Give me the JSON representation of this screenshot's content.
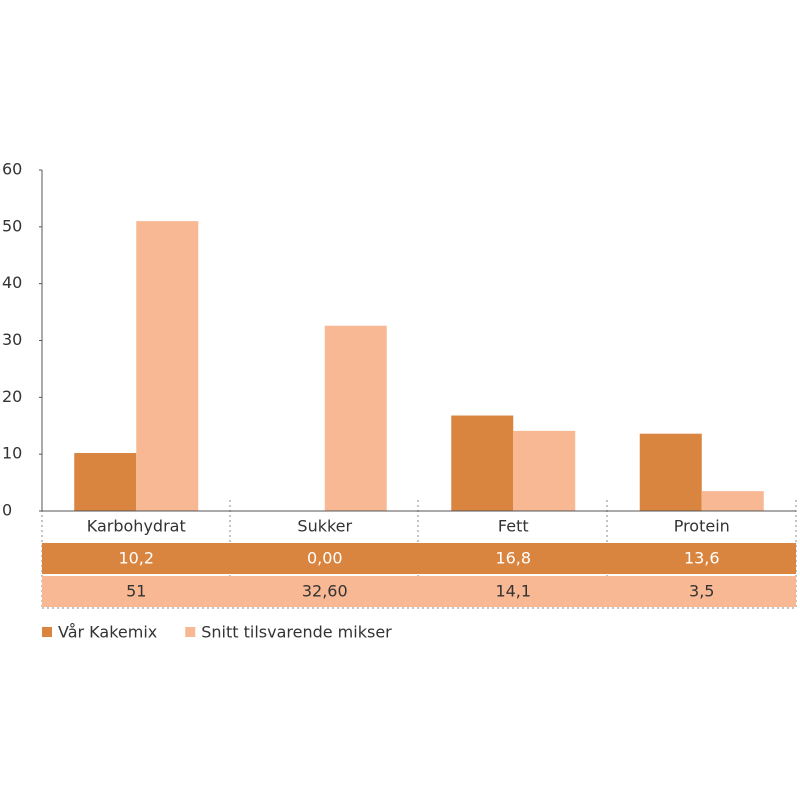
{
  "chart_data": {
    "type": "bar",
    "categories": [
      "Karbohydrat",
      "Sukker",
      "Fett",
      "Protein"
    ],
    "series": [
      {
        "name": "Vår Kakemix",
        "color": "#d9843f",
        "values": [
          10.2,
          0,
          16.8,
          13.6
        ],
        "value_labels": [
          "10,2",
          "0,00",
          "16,8",
          "13,6"
        ]
      },
      {
        "name": "Snitt tilsvarende mikser",
        "color": "#f8b894",
        "values": [
          51,
          32.6,
          14.1,
          3.5
        ],
        "value_labels": [
          "51",
          "32,60",
          "14,1",
          "3,5"
        ]
      }
    ],
    "ylim": [
      0,
      60
    ],
    "yticks": [
      0,
      10,
      20,
      30,
      40,
      50,
      60
    ],
    "grid": false
  }
}
